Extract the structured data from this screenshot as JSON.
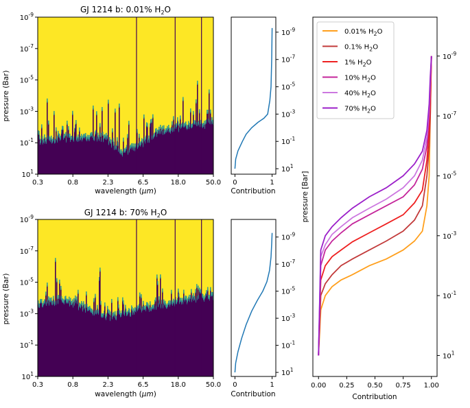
{
  "chart_data": [
    {
      "type": "heatmap",
      "title": "GJ 1214 b: 0.01% H",
      "title_sub": "2",
      "title_tail": "O",
      "xlabel": "wavelength (",
      "xlabel_unit": "μm",
      "xlabel_tail": ")",
      "ylabel": "pressure (Bar)",
      "x_scale": "log",
      "y_scale": "log",
      "y_inverted": true,
      "xlim": [
        0.3,
        50.0
      ],
      "ylim": [
        10,
        1e-09
      ],
      "x_ticks": [
        "0.3",
        "0.8",
        "2.3",
        "6.5",
        "18.0",
        "50.0"
      ],
      "y_ticks": [
        {
          "b": "10",
          "e": "-9"
        },
        {
          "b": "10",
          "e": "-7"
        },
        {
          "b": "10",
          "e": "-5"
        },
        {
          "b": "10",
          "e": "-3"
        },
        {
          "b": "10",
          "e": "-1"
        },
        {
          "b": "10",
          "e": "1"
        }
      ],
      "colormap": "viridis",
      "baseline_log_pressure": [
        [
          -1.8,
          -1.0
        ],
        [
          -1.2,
          -0.5
        ],
        [
          -0.6,
          -0.8
        ],
        [
          -0.2,
          -1.0
        ],
        [
          0.2,
          -1.1
        ],
        [
          0.35,
          -0.9
        ],
        [
          0.55,
          -0.1
        ],
        [
          0.75,
          -0.5
        ],
        [
          1.0,
          -1.4
        ],
        [
          1.3,
          -1.7
        ],
        [
          1.7,
          -1.9
        ]
      ]
    },
    {
      "type": "line",
      "xlabel": "Contribution",
      "x_ticks": [
        "0",
        "1"
      ],
      "y_ticks": [
        {
          "b": "10",
          "e": "-9"
        },
        {
          "b": "10",
          "e": "-7"
        },
        {
          "b": "10",
          "e": "-5"
        },
        {
          "b": "10",
          "e": "-3"
        },
        {
          "b": "10",
          "e": "-1"
        },
        {
          "b": "10",
          "e": "1"
        }
      ],
      "y_scale": "log",
      "y_inverted": true,
      "xlim": [
        -0.1,
        1.1
      ],
      "ylim": [
        20,
        1e-10
      ],
      "series": [
        {
          "color": "#1f77b4",
          "x": [
            0.0,
            0.02,
            0.08,
            0.2,
            0.3,
            0.45,
            0.62,
            0.78,
            0.88,
            0.94,
            0.97,
            0.99,
            1.0
          ],
          "y": [
            10,
            2,
            0.5,
            0.1,
            0.03,
            0.01,
            0.004,
            0.002,
            0.001,
            0.0001,
            1e-05,
            1e-07,
            5e-10
          ]
        }
      ]
    },
    {
      "type": "heatmap",
      "title": "GJ 1214 b: 70% H",
      "title_sub": "2",
      "title_tail": "O",
      "xlabel": "wavelength (",
      "xlabel_unit": "μm",
      "xlabel_tail": ")",
      "ylabel": "pressure (Bar)",
      "x_scale": "log",
      "y_scale": "log",
      "y_inverted": true,
      "xlim": [
        0.3,
        50.0
      ],
      "ylim": [
        10,
        1e-09
      ],
      "x_ticks": [
        "0.3",
        "0.8",
        "2.3",
        "6.5",
        "18.0",
        "50.0"
      ],
      "y_ticks": [
        {
          "b": "10",
          "e": "-9"
        },
        {
          "b": "10",
          "e": "-7"
        },
        {
          "b": "10",
          "e": "-5"
        },
        {
          "b": "10",
          "e": "-3"
        },
        {
          "b": "10",
          "e": "-1"
        },
        {
          "b": "10",
          "e": "1"
        }
      ],
      "colormap": "viridis",
      "baseline_log_pressure": [
        [
          -1.8,
          -2.2
        ],
        [
          -1.2,
          -2.6
        ],
        [
          -0.6,
          -3.2
        ],
        [
          -0.2,
          -3.6
        ],
        [
          0.2,
          -2.8
        ],
        [
          0.35,
          -2.5
        ],
        [
          0.55,
          -2.6
        ],
        [
          0.75,
          -3.0
        ],
        [
          1.0,
          -3.2
        ],
        [
          1.3,
          -3.5
        ],
        [
          1.7,
          -3.8
        ]
      ]
    },
    {
      "type": "line",
      "xlabel": "Contribution",
      "x_ticks": [
        "0",
        "1"
      ],
      "y_ticks": [
        {
          "b": "10",
          "e": "-9"
        },
        {
          "b": "10",
          "e": "-7"
        },
        {
          "b": "10",
          "e": "-5"
        },
        {
          "b": "10",
          "e": "-3"
        },
        {
          "b": "10",
          "e": "-1"
        },
        {
          "b": "10",
          "e": "1"
        }
      ],
      "y_scale": "log",
      "y_inverted": true,
      "xlim": [
        -0.1,
        1.1
      ],
      "ylim": [
        20,
        1e-10
      ],
      "series": [
        {
          "color": "#1f77b4",
          "x": [
            0.0,
            0.02,
            0.08,
            0.18,
            0.3,
            0.45,
            0.6,
            0.75,
            0.86,
            0.93,
            0.97,
            0.99,
            1.0
          ],
          "y": [
            10,
            2,
            0.3,
            0.03,
            0.003,
            0.0003,
            5e-05,
            1e-05,
            2e-06,
            3e-07,
            3e-08,
            3e-09,
            5e-10
          ]
        }
      ]
    },
    {
      "type": "line",
      "xlabel": "Contribution",
      "ylabel": "pressure [Bar]",
      "x_ticks": [
        "0.00",
        "0.25",
        "0.50",
        "0.75",
        "1.00"
      ],
      "x_tick_values": [
        0,
        0.25,
        0.5,
        0.75,
        1.0
      ],
      "y_ticks": [
        {
          "b": "10",
          "e": "-9"
        },
        {
          "b": "10",
          "e": "-7"
        },
        {
          "b": "10",
          "e": "-5"
        },
        {
          "b": "10",
          "e": "-3"
        },
        {
          "b": "10",
          "e": "-1"
        },
        {
          "b": "10",
          "e": "1"
        }
      ],
      "y_tick_values": [
        -9,
        -7,
        -5,
        -3,
        -1,
        1
      ],
      "y_scale": "log",
      "y_inverted": true,
      "xlim": [
        -0.05,
        1.05
      ],
      "ylim": [
        20,
        1e-10
      ],
      "legend": "top-left",
      "series": [
        {
          "name": "0.01% H",
          "sub": "2",
          "tail": "O",
          "color": "#ff9f1c",
          "x": [
            0,
            0.02,
            0.06,
            0.12,
            0.2,
            0.3,
            0.45,
            0.6,
            0.75,
            0.85,
            0.92,
            0.96,
            0.98,
            0.99,
            1.0
          ],
          "y": [
            10,
            0.3,
            0.1,
            0.05,
            0.03,
            0.02,
            0.01,
            0.006,
            0.003,
            0.0015,
            0.0007,
            0.0001,
            1e-05,
            1e-07,
            1e-09
          ]
        },
        {
          "name": "0.1% H",
          "sub": "2",
          "tail": "O",
          "color": "#c23a3a",
          "x": [
            0,
            0.02,
            0.06,
            0.12,
            0.2,
            0.3,
            0.45,
            0.6,
            0.75,
            0.85,
            0.92,
            0.96,
            0.98,
            0.99,
            1.0
          ],
          "y": [
            10,
            0.1,
            0.04,
            0.02,
            0.01,
            0.006,
            0.003,
            0.0015,
            0.0007,
            0.0003,
            0.0001,
            1e-05,
            1e-06,
            1e-07,
            1e-09
          ]
        },
        {
          "name": "1% H",
          "sub": "2",
          "tail": "O",
          "color": "#ee1f1f",
          "x": [
            0,
            0.02,
            0.06,
            0.12,
            0.2,
            0.3,
            0.45,
            0.6,
            0.75,
            0.85,
            0.92,
            0.96,
            0.98,
            0.99,
            1.0
          ],
          "y": [
            10,
            0.03,
            0.01,
            0.005,
            0.003,
            0.0016,
            0.0008,
            0.0004,
            0.0002,
            8e-05,
            3e-05,
            3e-06,
            3e-07,
            3e-08,
            1e-09
          ]
        },
        {
          "name": "10% H",
          "sub": "2",
          "tail": "O",
          "color": "#c4249a",
          "x": [
            0,
            0.02,
            0.06,
            0.12,
            0.2,
            0.3,
            0.45,
            0.6,
            0.75,
            0.85,
            0.92,
            0.96,
            0.98,
            0.99,
            1.0
          ],
          "y": [
            10,
            0.01,
            0.003,
            0.0015,
            0.0008,
            0.0004,
            0.0002,
            0.0001,
            5e-05,
            2e-05,
            6e-06,
            1e-06,
            1e-07,
            1e-08,
            1e-09
          ]
        },
        {
          "name": "40% H",
          "sub": "2",
          "tail": "O",
          "color": "#cc77e0",
          "x": [
            0,
            0.02,
            0.06,
            0.12,
            0.2,
            0.3,
            0.45,
            0.6,
            0.75,
            0.85,
            0.92,
            0.96,
            0.98,
            0.99,
            1.0
          ],
          "y": [
            10,
            0.005,
            0.002,
            0.0009,
            0.0005,
            0.00025,
            0.00012,
            6e-05,
            2.5e-05,
            1e-05,
            3e-06,
            5e-07,
            6e-08,
            8e-09,
            1e-09
          ]
        },
        {
          "name": "70% H",
          "sub": "2",
          "tail": "O",
          "color": "#9b1fc9",
          "x": [
            0,
            0.02,
            0.06,
            0.12,
            0.2,
            0.3,
            0.45,
            0.6,
            0.75,
            0.85,
            0.92,
            0.96,
            0.98,
            0.99,
            1.0
          ],
          "y": [
            10,
            0.003,
            0.001,
            0.0005,
            0.00025,
            0.00012,
            5e-05,
            2.5e-05,
            1e-05,
            4e-06,
            1.5e-06,
            3e-07,
            4e-08,
            5e-09,
            1e-09
          ]
        }
      ]
    }
  ]
}
